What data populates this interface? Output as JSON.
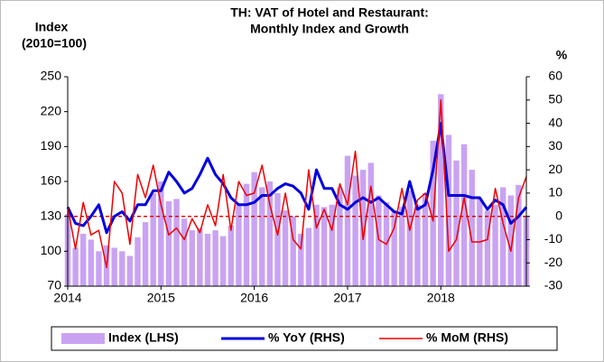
{
  "chart_data": {
    "type": "bar-line",
    "title": [
      "TH: VAT of Hotel and Restaurant:",
      "Monthly Index and Growth"
    ],
    "ylabel": [
      "Index",
      "(2010=100)"
    ],
    "y2label": "%",
    "categories": [
      "2014",
      null,
      null,
      null,
      null,
      null,
      null,
      null,
      null,
      null,
      null,
      null,
      "2015",
      null,
      null,
      null,
      null,
      null,
      null,
      null,
      null,
      null,
      null,
      null,
      "2016",
      null,
      null,
      null,
      null,
      null,
      null,
      null,
      null,
      null,
      null,
      null,
      "2017",
      null,
      null,
      null,
      null,
      null,
      null,
      null,
      null,
      null,
      null,
      null,
      "2018",
      null,
      null,
      null,
      null,
      null,
      null,
      null,
      null,
      null,
      null,
      null
    ],
    "ylim": [
      70,
      250
    ],
    "yticks": [
      70,
      100,
      130,
      160,
      190,
      220,
      250
    ],
    "y2lim": [
      -30,
      60
    ],
    "y2ticks": [
      -30,
      -20,
      -10,
      0,
      10,
      20,
      30,
      40,
      50,
      60
    ],
    "reference_line": {
      "value": 0,
      "axis": "y2",
      "color": "#e00000"
    },
    "series": [
      {
        "name": "Index (LHS)",
        "type": "bar",
        "color": "#c9a3f2",
        "axis": "y",
        "values": [
          132,
          103,
          115,
          110,
          100,
          105,
          103,
          100,
          96,
          112,
          125,
          150,
          160,
          143,
          145,
          128,
          118,
          120,
          115,
          118,
          113,
          122,
          140,
          158,
          168,
          155,
          160,
          150,
          135,
          130,
          115,
          120,
          140,
          138,
          140,
          155,
          182,
          165,
          170,
          176,
          148,
          142,
          135,
          138,
          152,
          140,
          150,
          195,
          235,
          200,
          178,
          192,
          170,
          145,
          135,
          140,
          155,
          148,
          157,
          130
        ]
      },
      {
        "name": "% YoY (RHS)",
        "type": "line",
        "color": "#0000dd",
        "axis": "y2",
        "values": [
          4,
          -3,
          -4,
          0,
          5,
          -7,
          0,
          2,
          -2,
          5,
          5,
          11,
          11,
          19,
          15,
          10,
          12,
          18,
          25,
          18,
          14,
          8,
          5,
          5,
          6,
          9,
          9,
          12,
          14,
          13,
          10,
          3,
          20,
          12,
          12,
          5,
          3,
          6,
          8,
          6,
          8,
          5,
          2,
          1,
          15,
          3,
          5,
          20,
          40,
          9,
          9,
          9,
          8,
          8,
          3,
          7,
          5,
          -3,
          0,
          4
        ]
      },
      {
        "name": "% MoM (RHS)",
        "type": "line",
        "color": "#ee0000",
        "axis": "y2",
        "values": [
          4,
          -14,
          6,
          -8,
          -6,
          -22,
          15,
          10,
          -12,
          18,
          8,
          22,
          5,
          -8,
          -5,
          -10,
          -1,
          -7,
          5,
          -4,
          18,
          -6,
          15,
          9,
          10,
          22,
          5,
          -8,
          10,
          -10,
          -14,
          20,
          -5,
          3,
          -6,
          14,
          5,
          28,
          -10,
          13,
          -10,
          -12,
          -5,
          12,
          -6,
          7,
          10,
          -2,
          50,
          -15,
          -10,
          8,
          -11,
          -11,
          -10,
          12,
          -3,
          -15,
          8,
          17
        ]
      }
    ]
  }
}
